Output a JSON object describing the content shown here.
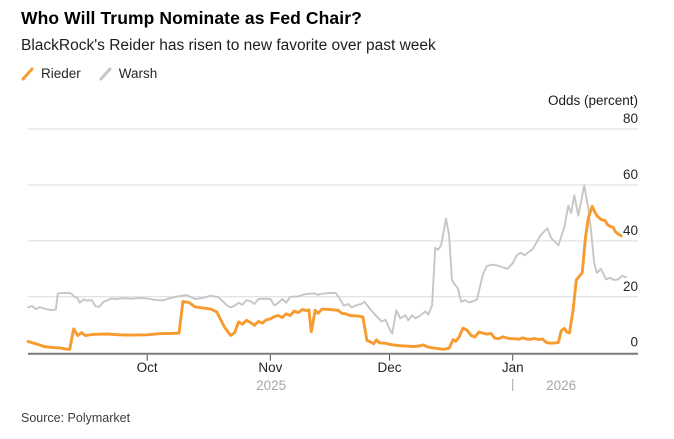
{
  "footer": {
    "source": "Source: Polymarket"
  },
  "chart_data": {
    "type": "line",
    "title": "Who Will Trump Nominate as Fed Chair?",
    "subtitle": "BlackRock's Reider has risen to new favorite over past week",
    "ylabel": "Odds (percent)",
    "ylim": [
      0,
      80
    ],
    "yticks": [
      0,
      20,
      40,
      60,
      80
    ],
    "grid": "horizontal",
    "legend_position": "top-left",
    "x_unit": "days since 2025-09-01",
    "x_range_days": [
      0,
      151
    ],
    "month_ticks": [
      {
        "label": "Oct",
        "day": 30
      },
      {
        "label": "Nov",
        "day": 61
      },
      {
        "label": "Dec",
        "day": 91
      },
      {
        "label": "Jan",
        "day": 122
      }
    ],
    "year_labels": [
      {
        "label": "2025",
        "day": 61.2
      },
      {
        "label": "2026",
        "day": 134.2
      }
    ],
    "year_divider_day": 122,
    "axis_colors": {
      "gridline": "#dcdcdc",
      "baseline": "#7a7a7a",
      "tick_text": "#262626",
      "year_text": "#a6a6a6"
    },
    "series": [
      {
        "name": "Warsh",
        "color": "#c6c6c6",
        "width": 1.9,
        "points": [
          [
            0,
            16.2
          ],
          [
            1,
            16.7
          ],
          [
            2,
            15.6
          ],
          [
            3,
            16.3
          ],
          [
            4,
            15.8
          ],
          [
            5,
            15.5
          ],
          [
            6,
            15.2
          ],
          [
            7,
            15.4
          ],
          [
            7.5,
            21.2
          ],
          [
            9,
            21.4
          ],
          [
            10.5,
            21.3
          ],
          [
            11,
            21
          ],
          [
            11.7,
            20
          ],
          [
            12.5,
            19.5
          ],
          [
            13,
            17.9
          ],
          [
            14,
            19
          ],
          [
            15,
            18.6
          ],
          [
            16,
            18.9
          ],
          [
            17,
            16.6
          ],
          [
            18,
            16.4
          ],
          [
            19,
            18.2
          ],
          [
            20,
            18.7
          ],
          [
            21,
            19.4
          ],
          [
            22,
            19.2
          ],
          [
            24,
            19.5
          ],
          [
            26,
            19.3
          ],
          [
            28,
            19.6
          ],
          [
            30,
            19.4
          ],
          [
            32,
            18.9
          ],
          [
            34,
            18.7
          ],
          [
            36,
            19.6
          ],
          [
            38,
            20.2
          ],
          [
            40,
            20.6
          ],
          [
            42,
            19.2
          ],
          [
            44,
            19.6
          ],
          [
            46,
            20.4
          ],
          [
            48,
            19.8
          ],
          [
            50,
            17
          ],
          [
            51,
            16.2
          ],
          [
            52,
            16.8
          ],
          [
            53,
            17.8
          ],
          [
            54,
            17.2
          ],
          [
            55,
            18.8
          ],
          [
            56,
            18.4
          ],
          [
            57,
            17.4
          ],
          [
            58,
            19.2
          ],
          [
            59.5,
            19.3
          ],
          [
            61,
            19.2
          ],
          [
            62,
            16.9
          ],
          [
            63,
            17.8
          ],
          [
            64,
            19.2
          ],
          [
            65,
            17.9
          ],
          [
            66,
            20
          ],
          [
            68,
            20.1
          ],
          [
            69,
            20.6
          ],
          [
            70,
            21
          ],
          [
            72,
            21.2
          ],
          [
            73,
            20.7
          ],
          [
            74,
            21.1
          ],
          [
            76,
            21.4
          ],
          [
            77.5,
            21.3
          ],
          [
            78.5,
            19.2
          ],
          [
            79.5,
            16.8
          ],
          [
            80.5,
            17.4
          ],
          [
            81.5,
            16.2
          ],
          [
            82.5,
            16.9
          ],
          [
            84,
            17.5
          ],
          [
            84.7,
            18.2
          ],
          [
            86,
            15.8
          ],
          [
            87.5,
            13.4
          ],
          [
            89,
            11.2
          ],
          [
            90,
            11.8
          ],
          [
            91,
            8.5
          ],
          [
            91.7,
            6.8
          ],
          [
            92.7,
            15.2
          ],
          [
            93.7,
            12.3
          ],
          [
            95,
            13.4
          ],
          [
            95.7,
            11.6
          ],
          [
            96.7,
            13.4
          ],
          [
            97.5,
            12.3
          ],
          [
            98.7,
            13.2
          ],
          [
            100,
            14.8
          ],
          [
            100.7,
            13.6
          ],
          [
            101.7,
            17
          ],
          [
            102.5,
            37.5
          ],
          [
            103.2,
            36.8
          ],
          [
            104,
            38.5
          ],
          [
            105.2,
            48
          ],
          [
            106,
            42
          ],
          [
            106.7,
            26
          ],
          [
            107.4,
            24.4
          ],
          [
            108.2,
            23
          ],
          [
            109,
            18.2
          ],
          [
            110,
            18.8
          ],
          [
            111,
            18
          ],
          [
            112,
            18.4
          ],
          [
            113,
            19
          ],
          [
            114.5,
            28
          ],
          [
            115.5,
            31
          ],
          [
            117,
            31.5
          ],
          [
            118.2,
            31.2
          ],
          [
            119.5,
            30.5
          ],
          [
            120.7,
            30
          ],
          [
            122,
            32
          ],
          [
            123,
            34.8
          ],
          [
            124,
            35.8
          ],
          [
            125,
            34.8
          ],
          [
            126,
            36
          ],
          [
            127,
            37
          ],
          [
            128,
            39.5
          ],
          [
            129,
            42
          ],
          [
            130.7,
            44.5
          ],
          [
            131.7,
            41
          ],
          [
            132.7,
            39.6
          ],
          [
            133.5,
            38.4
          ],
          [
            135,
            45
          ],
          [
            136,
            52.7
          ],
          [
            136.7,
            50
          ],
          [
            137.5,
            56.3
          ],
          [
            138.5,
            49
          ],
          [
            140,
            59.8
          ],
          [
            141,
            52
          ],
          [
            141.7,
            43.8
          ],
          [
            142.5,
            32
          ],
          [
            143.2,
            28.5
          ],
          [
            144.2,
            30
          ],
          [
            145.5,
            26.2
          ],
          [
            146.5,
            26.8
          ],
          [
            147.5,
            26
          ],
          [
            148.5,
            26.2
          ],
          [
            149.5,
            27.5
          ],
          [
            150.5,
            27
          ]
        ]
      },
      {
        "name": "Rieder",
        "color": "#f79b2e",
        "width": 2.9,
        "points": [
          [
            0,
            4
          ],
          [
            2,
            3.2
          ],
          [
            4,
            2.2
          ],
          [
            6,
            1.9
          ],
          [
            8,
            1.7
          ],
          [
            9.5,
            1.3
          ],
          [
            10.5,
            1.2
          ],
          [
            11.5,
            8.5
          ],
          [
            12.5,
            6.1
          ],
          [
            13.5,
            7.2
          ],
          [
            14.5,
            6.1
          ],
          [
            16,
            6.5
          ],
          [
            18,
            6.6
          ],
          [
            20,
            6.7
          ],
          [
            23,
            6.4
          ],
          [
            26,
            6.3
          ],
          [
            30,
            6.4
          ],
          [
            33,
            6.8
          ],
          [
            36,
            6.9
          ],
          [
            38,
            7
          ],
          [
            39,
            18.3
          ],
          [
            40.5,
            18
          ],
          [
            42,
            16.4
          ],
          [
            44,
            16
          ],
          [
            46,
            15.6
          ],
          [
            47.5,
            14.6
          ],
          [
            49.5,
            9
          ],
          [
            51,
            6.2
          ],
          [
            52,
            7.1
          ],
          [
            53,
            11
          ],
          [
            54,
            10.2
          ],
          [
            55,
            11.6
          ],
          [
            56,
            10.8
          ],
          [
            57,
            9.8
          ],
          [
            58,
            11.2
          ],
          [
            59,
            10.6
          ],
          [
            60,
            11.8
          ],
          [
            61,
            12.1
          ],
          [
            62,
            12.9
          ],
          [
            63,
            13.3
          ],
          [
            64,
            12.6
          ],
          [
            65,
            13.9
          ],
          [
            66,
            13.3
          ],
          [
            67,
            14.9
          ],
          [
            68,
            14.3
          ],
          [
            69,
            15.4
          ],
          [
            70,
            15.1
          ],
          [
            70.7,
            15.3
          ],
          [
            71.3,
            7.5
          ],
          [
            72.3,
            15.2
          ],
          [
            73,
            14.1
          ],
          [
            74,
            15.6
          ],
          [
            76,
            15.4
          ],
          [
            78,
            15.2
          ],
          [
            79,
            14.1
          ],
          [
            80,
            13.9
          ],
          [
            81,
            13.3
          ],
          [
            83,
            13.1
          ],
          [
            84.3,
            12.8
          ],
          [
            85.3,
            4.4
          ],
          [
            86,
            4
          ],
          [
            87,
            3.2
          ],
          [
            87.7,
            4.6
          ],
          [
            88.5,
            3.5
          ],
          [
            90,
            3.4
          ],
          [
            91,
            3
          ],
          [
            92,
            2.8
          ],
          [
            93.5,
            2.5
          ],
          [
            95,
            2.4
          ],
          [
            97,
            2.2
          ],
          [
            98.5,
            2.4
          ],
          [
            99.5,
            2.8
          ],
          [
            100.5,
            2.1
          ],
          [
            101.5,
            1.8
          ],
          [
            103,
            1.5
          ],
          [
            104.5,
            1.2
          ],
          [
            106,
            1.6
          ],
          [
            107,
            4.7
          ],
          [
            107.7,
            4.1
          ],
          [
            108.5,
            5.6
          ],
          [
            109.5,
            8.8
          ],
          [
            110.5,
            8.1
          ],
          [
            111.5,
            6.2
          ],
          [
            112.5,
            5.6
          ],
          [
            113.5,
            7.4
          ],
          [
            114.5,
            7
          ],
          [
            115.5,
            6.6
          ],
          [
            116.5,
            6.9
          ],
          [
            117.5,
            5.2
          ],
          [
            118.5,
            5
          ],
          [
            119.5,
            5.7
          ],
          [
            120.5,
            5.3
          ],
          [
            121.5,
            5
          ],
          [
            122.5,
            5
          ],
          [
            123.5,
            4.8
          ],
          [
            124.5,
            5.3
          ],
          [
            125.5,
            4.9
          ],
          [
            126.5,
            4.8
          ],
          [
            127.5,
            5.1
          ],
          [
            128.5,
            4.7
          ],
          [
            129.5,
            4.9
          ],
          [
            130.5,
            3.6
          ],
          [
            131.5,
            3.4
          ],
          [
            132.5,
            3.5
          ],
          [
            133.5,
            3.7
          ],
          [
            134.2,
            7.8
          ],
          [
            135,
            8.7
          ],
          [
            135.7,
            7.3
          ],
          [
            136.3,
            7.1
          ],
          [
            137.2,
            15.2
          ],
          [
            138,
            26
          ],
          [
            138.7,
            27.3
          ],
          [
            139.5,
            28.5
          ],
          [
            140.3,
            41
          ],
          [
            141,
            48
          ],
          [
            142,
            52.4
          ],
          [
            142.7,
            50.2
          ],
          [
            143.3,
            48.8
          ],
          [
            144.3,
            47.6
          ],
          [
            145.3,
            47.2
          ],
          [
            145.8,
            45.9
          ],
          [
            146.5,
            45.2
          ],
          [
            147.3,
            44.8
          ],
          [
            147.8,
            43.4
          ],
          [
            148.4,
            42.6
          ],
          [
            149.3,
            41.8
          ]
        ]
      }
    ]
  }
}
